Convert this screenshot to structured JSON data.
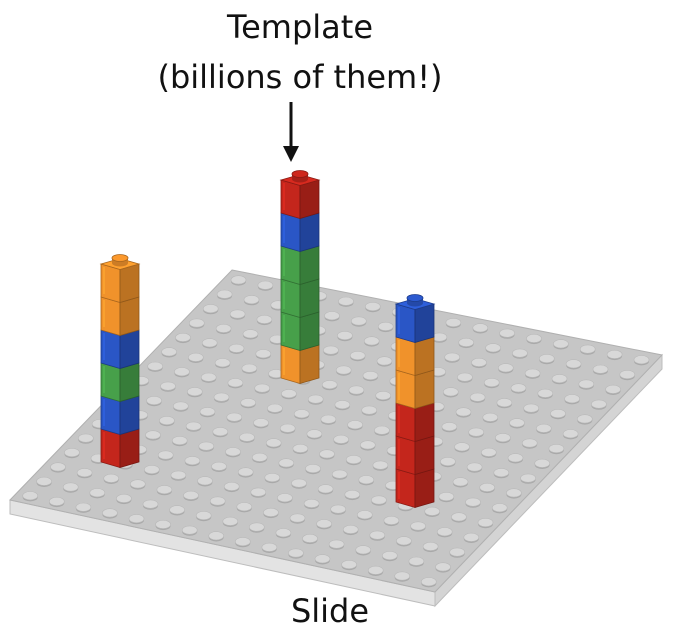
{
  "labels": {
    "template": "Template",
    "template_note": "(billions of them!)",
    "slide": "Slide"
  },
  "colors": {
    "plate_top": "#c6c6c6",
    "plate_side": "#e3e3e3",
    "stud": "#d8d8d8",
    "orange": "#f0922b",
    "red": "#c4261c",
    "blue": "#2a56c6",
    "green": "#47a04a"
  },
  "stacks": [
    {
      "name": "left-stack",
      "blocks": [
        "red",
        "blue",
        "green",
        "blue",
        "orange",
        "orange"
      ]
    },
    {
      "name": "center-stack",
      "blocks": [
        "orange",
        "green",
        "green",
        "green",
        "blue",
        "red"
      ]
    },
    {
      "name": "right-stack",
      "blocks": [
        "red",
        "red",
        "red",
        "orange",
        "orange",
        "blue"
      ]
    }
  ]
}
